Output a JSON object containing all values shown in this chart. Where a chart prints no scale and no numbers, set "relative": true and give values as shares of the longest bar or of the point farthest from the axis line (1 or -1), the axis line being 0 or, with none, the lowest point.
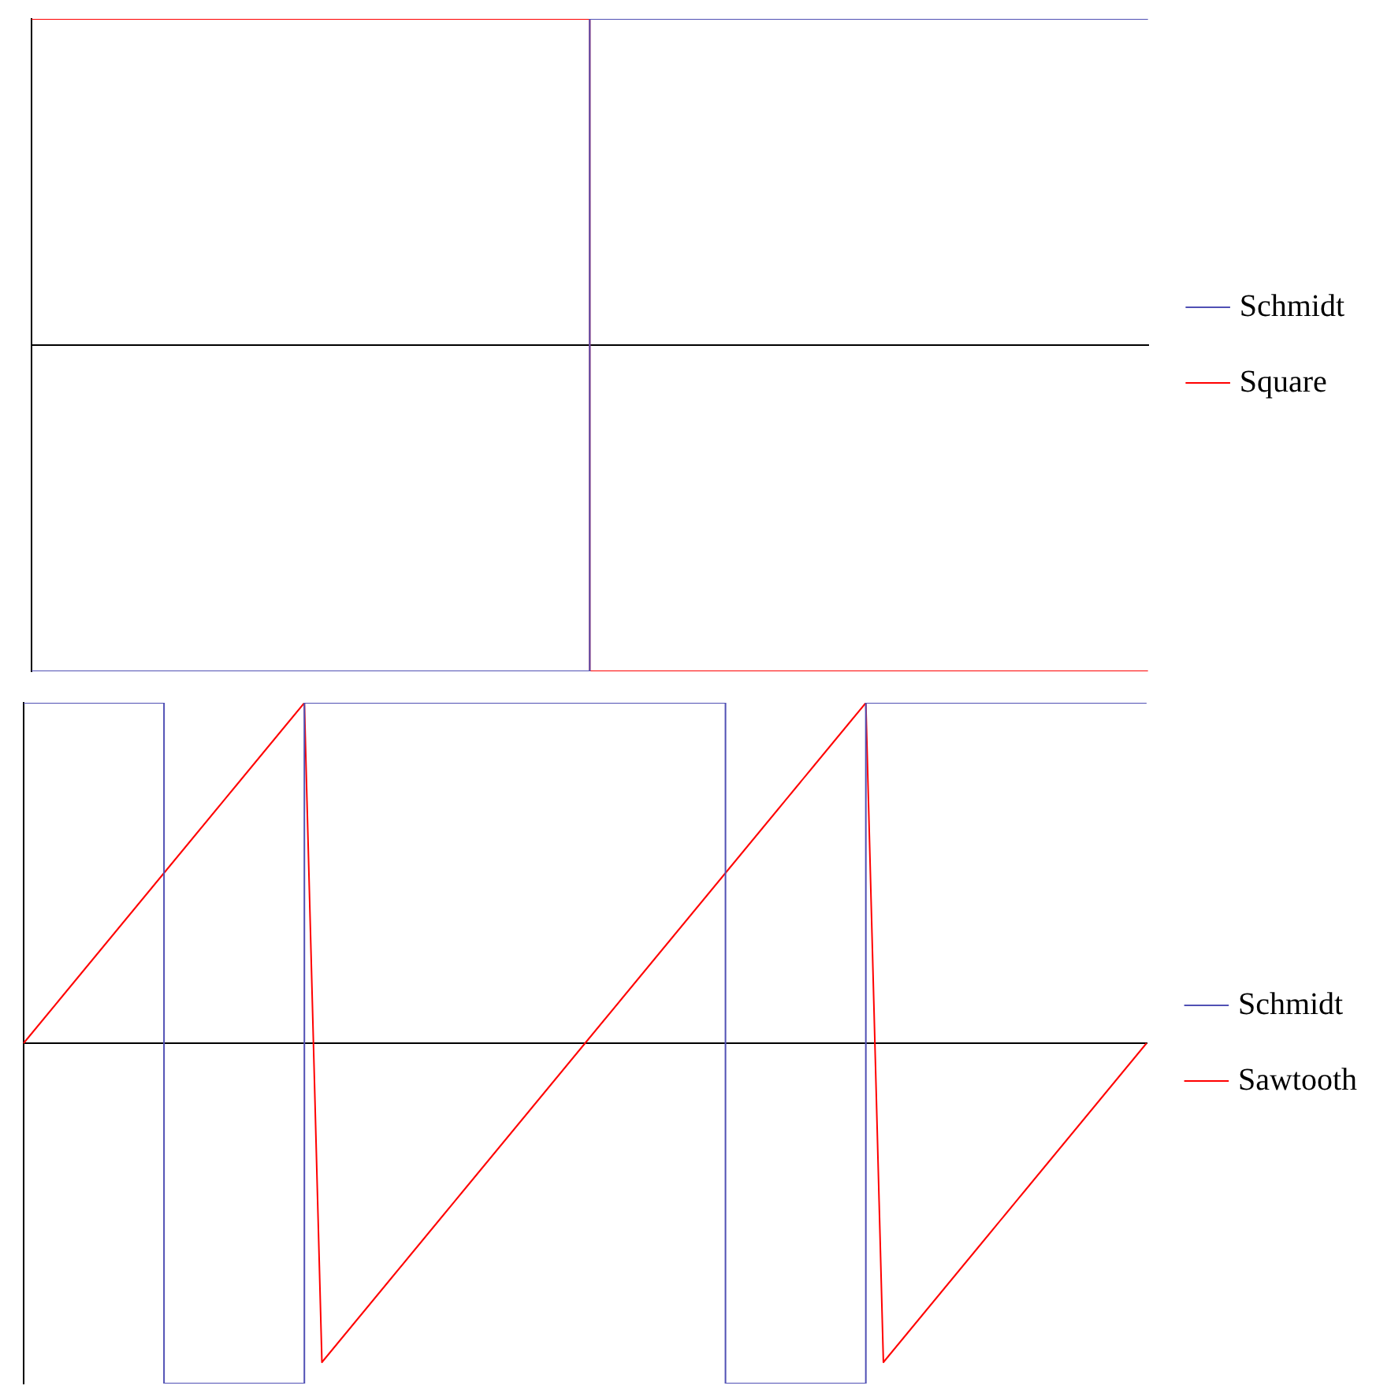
{
  "chart_data": [
    {
      "type": "step",
      "relative": true,
      "categories": [
        null,
        null,
        null
      ],
      "legend": "right",
      "marker": "none",
      "line_style": "solid",
      "grid": false,
      "series": [
        {
          "name": "Schmidt",
          "color": "#5050b4",
          "values": [
            -1,
            1,
            1
          ]
        },
        {
          "name": "Square",
          "color": "#ff0000",
          "values": [
            1,
            -1,
            -1
          ]
        }
      ]
    },
    {
      "type": "line",
      "relative": true,
      "categories": [
        null,
        null,
        null,
        null,
        null,
        null,
        null,
        null,
        null,
        null,
        null,
        null,
        null,
        null,
        null,
        null,
        null,
        null,
        null,
        null,
        null,
        null,
        null,
        null,
        null,
        null,
        null,
        null,
        null,
        null,
        null,
        null,
        null,
        null,
        null,
        null,
        null,
        null,
        null,
        null,
        null,
        null,
        null,
        null,
        null,
        null,
        null,
        null,
        null,
        null,
        null,
        null,
        null,
        null,
        null,
        null,
        null,
        null,
        null,
        null,
        null,
        null,
        null,
        null,
        null
      ],
      "legend": "right",
      "marker": "none",
      "line_style": "solid",
      "grid": false,
      "series": [
        {
          "name": "Schmidt",
          "type": "step",
          "color": "#5050b4",
          "values": [
            1,
            1,
            1,
            1,
            1,
            1,
            1,
            1,
            -1,
            -1,
            -1,
            -1,
            -1,
            -1,
            -1,
            -1,
            1,
            1,
            1,
            1,
            1,
            1,
            1,
            1,
            1,
            1,
            1,
            1,
            1,
            1,
            1,
            1,
            1,
            1,
            1,
            1,
            1,
            1,
            1,
            1,
            -1,
            -1,
            -1,
            -1,
            -1,
            -1,
            -1,
            -1,
            1,
            1,
            1,
            1,
            1,
            1,
            1,
            1,
            1,
            1,
            1,
            1,
            1,
            1,
            1,
            1,
            1
          ]
        },
        {
          "name": "Sawtooth",
          "color": "#ff0000",
          "values": [
            0,
            0.0625,
            0.125,
            0.1875,
            0.25,
            0.3125,
            0.375,
            0.4375,
            0.5,
            0.5625,
            0.625,
            0.6875,
            0.75,
            0.8125,
            0.875,
            0.9375,
            1,
            -0.9375,
            -0.875,
            -0.8125,
            -0.75,
            -0.6875,
            -0.625,
            -0.5625,
            -0.5,
            -0.4375,
            -0.375,
            -0.3125,
            -0.25,
            -0.1875,
            -0.125,
            -0.0625,
            0,
            0.0625,
            0.125,
            0.1875,
            0.25,
            0.3125,
            0.375,
            0.4375,
            0.5,
            0.5625,
            0.625,
            0.6875,
            0.75,
            0.8125,
            0.875,
            0.9375,
            1,
            -0.9375,
            -0.875,
            -0.8125,
            -0.75,
            -0.6875,
            -0.625,
            -0.5625,
            -0.5,
            -0.4375,
            -0.375,
            -0.3125,
            -0.25,
            -0.1875,
            -0.125,
            -0.0625,
            0
          ]
        }
      ]
    }
  ]
}
